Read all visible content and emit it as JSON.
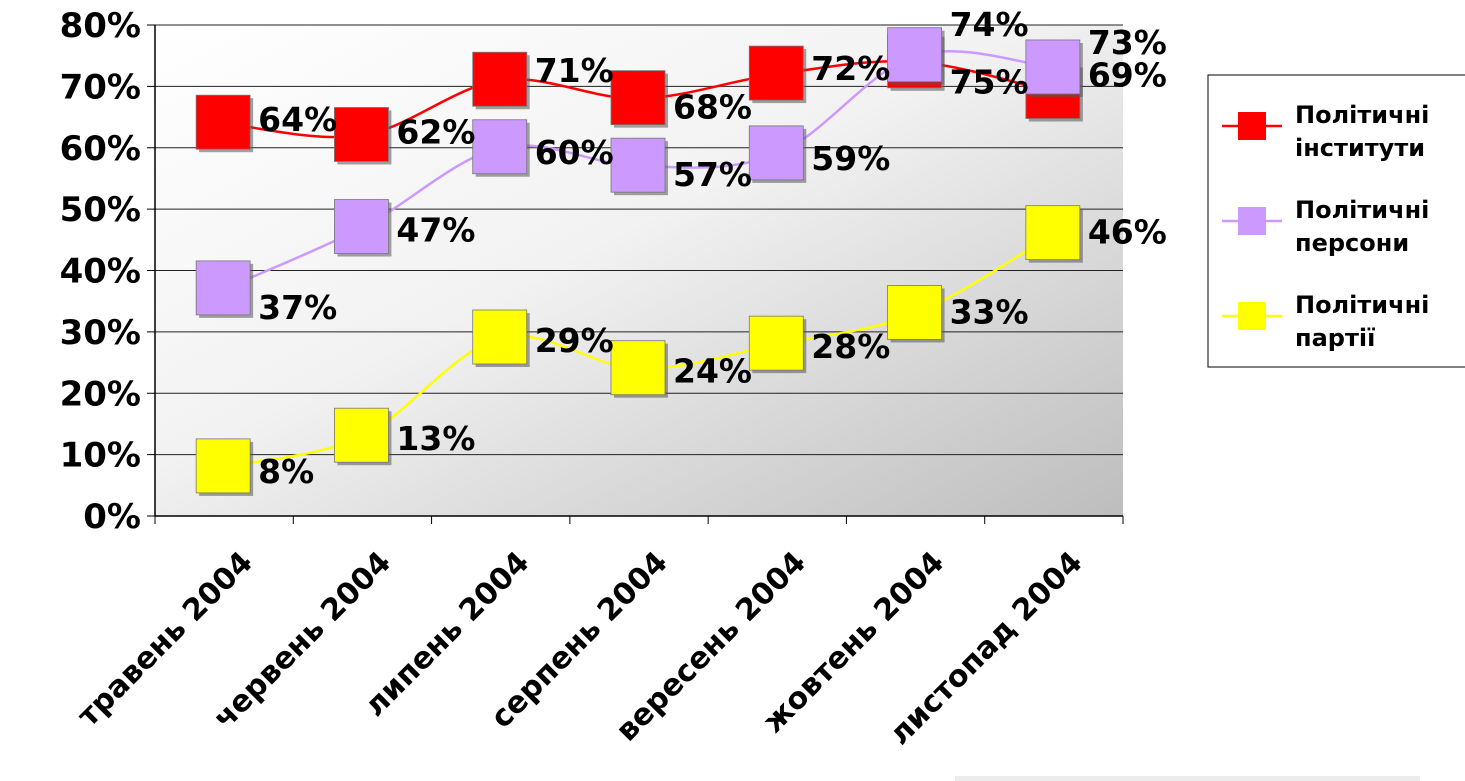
{
  "chart_data": {
    "type": "line",
    "categories": [
      "травень 2004",
      "червень 2004",
      "липень 2004",
      "серпень 2004",
      "вересень 2004",
      "жовтень 2004",
      "листопад 2004"
    ],
    "series": [
      {
        "name": "Політичні інститути",
        "name_lines": [
          "Політичні",
          "інститути"
        ],
        "color": "#ff0000",
        "values": [
          64,
          62,
          71,
          68,
          72,
          74,
          69
        ]
      },
      {
        "name": "Політичні персони",
        "name_lines": [
          "Політичні",
          "персони"
        ],
        "color": "#cc99ff",
        "values": [
          37,
          47,
          60,
          57,
          59,
          75,
          73
        ]
      },
      {
        "name": "Політичні партії",
        "name_lines": [
          "Політичні",
          "партії"
        ],
        "color": "#ffff00",
        "values": [
          8,
          13,
          29,
          24,
          28,
          33,
          46
        ]
      }
    ],
    "yticks": [
      "0%",
      "10%",
      "20%",
      "30%",
      "40%",
      "50%",
      "60%",
      "70%",
      "80%"
    ],
    "ylim": [
      0,
      80
    ],
    "value_suffix": "%",
    "grid": true,
    "legend_position": "right",
    "title": "",
    "xlabel": "",
    "ylabel": ""
  }
}
